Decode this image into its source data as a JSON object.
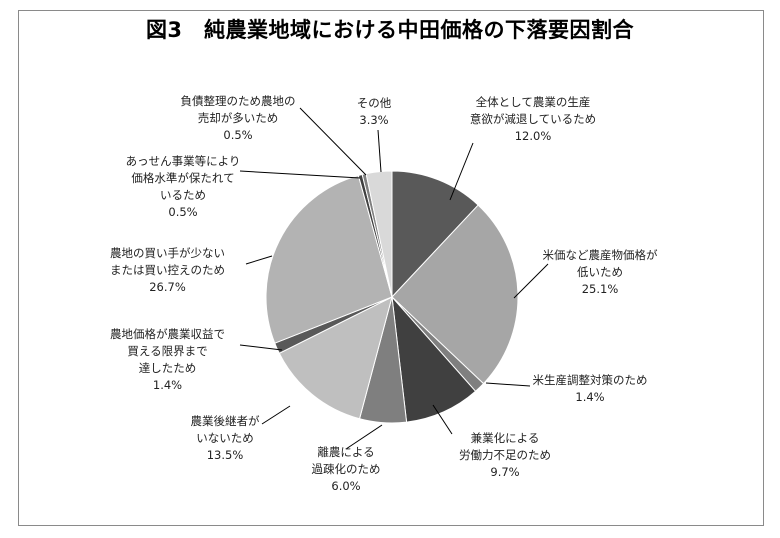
{
  "chart_data": {
    "type": "pie",
    "title": "図3　純農業地域における中田価格の下落要因割合",
    "slices": [
      {
        "label": [
          "全体として農業の生産",
          "意欲が減退しているため"
        ],
        "pct": "12.0%",
        "value": 12.0,
        "color": "#595959"
      },
      {
        "label": [
          "米価など農産物価格が",
          "低いため"
        ],
        "pct": "25.1%",
        "value": 25.1,
        "color": "#a6a6a6"
      },
      {
        "label": [
          "米生産調整対策のため"
        ],
        "pct": "1.4%",
        "value": 1.4,
        "color": "#7f7f7f"
      },
      {
        "label": [
          "兼業化による",
          "労働力不足のため"
        ],
        "pct": "9.7%",
        "value": 9.7,
        "color": "#404040"
      },
      {
        "label": [
          "離農による",
          "過疎化のため"
        ],
        "pct": "6.0%",
        "value": 6.0,
        "color": "#7f7f7f"
      },
      {
        "label": [
          "農業後継者が",
          "いないため"
        ],
        "pct": "13.5%",
        "value": 13.5,
        "color": "#bfbfbf"
      },
      {
        "label": [
          "農地価格が農業収益で",
          "買える限界まで",
          "達したため"
        ],
        "pct": "1.4%",
        "value": 1.4,
        "color": "#595959"
      },
      {
        "label": [
          "農地の買い手が少ない",
          "または買い控えのため"
        ],
        "pct": "26.7%",
        "value": 26.7,
        "color": "#b3b3b3"
      },
      {
        "label": [
          "あっせん事業等により",
          "価格水準が保たれて",
          "いるため"
        ],
        "pct": "0.5%",
        "value": 0.5,
        "color": "#404040"
      },
      {
        "label": [
          "負債整理のため農地の",
          "売却が多いため"
        ],
        "pct": "0.5%",
        "value": 0.5,
        "color": "#7f7f7f"
      },
      {
        "label": [
          "その他"
        ],
        "pct": "3.3%",
        "value": 3.3,
        "color": "#d9d9d9"
      }
    ]
  }
}
